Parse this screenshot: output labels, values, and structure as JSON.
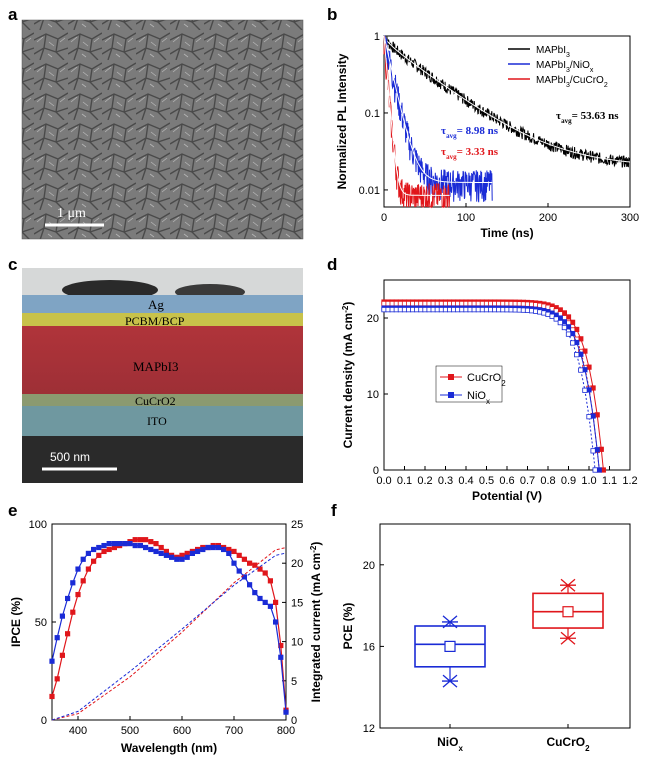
{
  "panels": {
    "a": {
      "letter": "a",
      "scale_label": "1 μm"
    },
    "b": {
      "letter": "b"
    },
    "c": {
      "letter": "c",
      "scale_label": "500 nm",
      "layers": [
        "Ag",
        "PCBM/BCP",
        "MAPbI3",
        "CuCrO2",
        "ITO"
      ]
    },
    "d": {
      "letter": "d"
    },
    "e": {
      "letter": "e"
    },
    "f": {
      "letter": "f"
    }
  },
  "colors": {
    "black": "#000000",
    "blue": "#1a2bd6",
    "red": "#e0161b",
    "white_fit": "#ffffff"
  },
  "chart_data": [
    {
      "id": "b",
      "type": "line",
      "xlabel": "Time (ns)",
      "ylabel": "Normalized PL Intensity",
      "xlim": [
        0,
        300
      ],
      "ylim": [
        0.006,
        1
      ],
      "yscale": "log",
      "xticks": [
        0,
        100,
        200,
        300
      ],
      "yticks": [
        {
          "v": 0.01,
          "label": "0.01"
        },
        {
          "v": 0.1,
          "label": "0.1"
        },
        {
          "v": 1,
          "label": "1"
        }
      ],
      "legend_position": "top-right",
      "legend": [
        "MAPbI3",
        "MAPbI3/NiOx",
        "MAPbI3/CuCrO2"
      ],
      "series": [
        {
          "name": "MAPbI3",
          "color": "#000000",
          "tau_ns": 53.63,
          "x_end": 300
        },
        {
          "name": "MAPbI3/NiOx",
          "color": "#1a2bd6",
          "tau_ns": 8.98,
          "x_end": 132
        },
        {
          "name": "MAPbI3/CuCrO2",
          "color": "#e0161b",
          "tau_ns": 3.33,
          "x_end": 80
        }
      ],
      "annotations": [
        {
          "text": "τavg= 8.98 ns",
          "color": "#1a2bd6"
        },
        {
          "text": "τavg= 3.33 ns",
          "color": "#e0161b"
        },
        {
          "text": "τavg=53.63 ns",
          "color": "#000000"
        }
      ]
    },
    {
      "id": "d",
      "type": "line",
      "xlabel": "Potential (V)",
      "ylabel": "Current density (mA cm-2)",
      "xlim": [
        0,
        1.2
      ],
      "ylim": [
        0,
        25
      ],
      "xticks": [
        0.0,
        0.1,
        0.2,
        0.3,
        0.4,
        0.5,
        0.6,
        0.7,
        0.8,
        0.9,
        1.0,
        1.1,
        1.2
      ],
      "yticks": [
        0,
        10,
        20
      ],
      "legend_position": "center-left",
      "legend": [
        "CuCrO2",
        "NiOx"
      ],
      "series": [
        {
          "name": "CuCrO2",
          "color": "#e0161b",
          "jsc": 22.1,
          "voc_reverse": 1.07,
          "voc_forward": 1.05
        },
        {
          "name": "NiOx",
          "color": "#1a2bd6",
          "jsc": 21.3,
          "voc_reverse": 1.05,
          "voc_forward": 1.03
        }
      ]
    },
    {
      "id": "e",
      "type": "line",
      "xlabel": "Wavelength (nm)",
      "ylabel": "IPCE (%)",
      "ylabel_right": "Integrated current (mA cm-2)",
      "xlim": [
        350,
        800
      ],
      "ylim": [
        0,
        100
      ],
      "ylim_right": [
        0,
        25
      ],
      "xticks": [
        400,
        500,
        600,
        700,
        800
      ],
      "yticks": [
        0,
        50,
        100
      ],
      "yticks_right": [
        0,
        5,
        10,
        15,
        20,
        25
      ],
      "x": [
        350,
        360,
        370,
        380,
        390,
        400,
        410,
        420,
        430,
        440,
        450,
        460,
        470,
        480,
        490,
        500,
        510,
        520,
        530,
        540,
        550,
        560,
        570,
        580,
        590,
        600,
        610,
        620,
        630,
        640,
        650,
        660,
        670,
        680,
        690,
        700,
        710,
        720,
        730,
        740,
        750,
        760,
        770,
        780,
        790,
        800
      ],
      "series": [
        {
          "name": "CuCrO2",
          "color": "#e0161b",
          "values": [
            12,
            21,
            33,
            44,
            55,
            64,
            71,
            77,
            81,
            84,
            86,
            87,
            88,
            89,
            90,
            91,
            92,
            92,
            92,
            91,
            90,
            88,
            86,
            84,
            83,
            84,
            85,
            86,
            87,
            88,
            88,
            89,
            89,
            88,
            87,
            86,
            84,
            82,
            80,
            79,
            77,
            75,
            71,
            60,
            38,
            5
          ]
        },
        {
          "name": "NiOx",
          "color": "#1a2bd6",
          "values": [
            30,
            42,
            53,
            62,
            70,
            77,
            82,
            85,
            87,
            88,
            89,
            90,
            90,
            90,
            90,
            90,
            89,
            89,
            88,
            87,
            86,
            85,
            84,
            83,
            82,
            82,
            83,
            85,
            86,
            87,
            88,
            88,
            88,
            87,
            85,
            80,
            76,
            73,
            69,
            65,
            62,
            60,
            58,
            50,
            32,
            4
          ]
        },
        {
          "name": "CuCrO2 integrated",
          "color": "#e0161b",
          "dashed": true,
          "axis": "right",
          "x_values": [
            350,
            400,
            500,
            600,
            700,
            780,
            800
          ],
          "values": [
            0,
            0.8,
            5.5,
            11.2,
            17.5,
            21.7,
            22.0
          ]
        },
        {
          "name": "NiOx integrated",
          "color": "#1a2bd6",
          "dashed": true,
          "axis": "right",
          "x_values": [
            350,
            400,
            500,
            600,
            700,
            780,
            800
          ],
          "values": [
            0,
            1.1,
            6.2,
            11.6,
            17.2,
            21.0,
            21.3
          ]
        }
      ]
    },
    {
      "id": "f",
      "type": "box",
      "ylabel": "PCE (%)",
      "ylim": [
        12,
        22
      ],
      "yticks": [
        12,
        16,
        20
      ],
      "categories": [
        "NiOx",
        "CuCrO2"
      ],
      "series": [
        {
          "name": "NiOx",
          "color": "#1a2bd6",
          "q1": 15.0,
          "median": 16.1,
          "q3": 17.0,
          "mean": 16.0,
          "min": 14.3,
          "max": 17.2
        },
        {
          "name": "CuCrO2",
          "color": "#e0161b",
          "q1": 16.9,
          "median": 17.7,
          "q3": 18.6,
          "mean": 17.7,
          "min": 16.4,
          "max": 19.0
        }
      ]
    }
  ]
}
